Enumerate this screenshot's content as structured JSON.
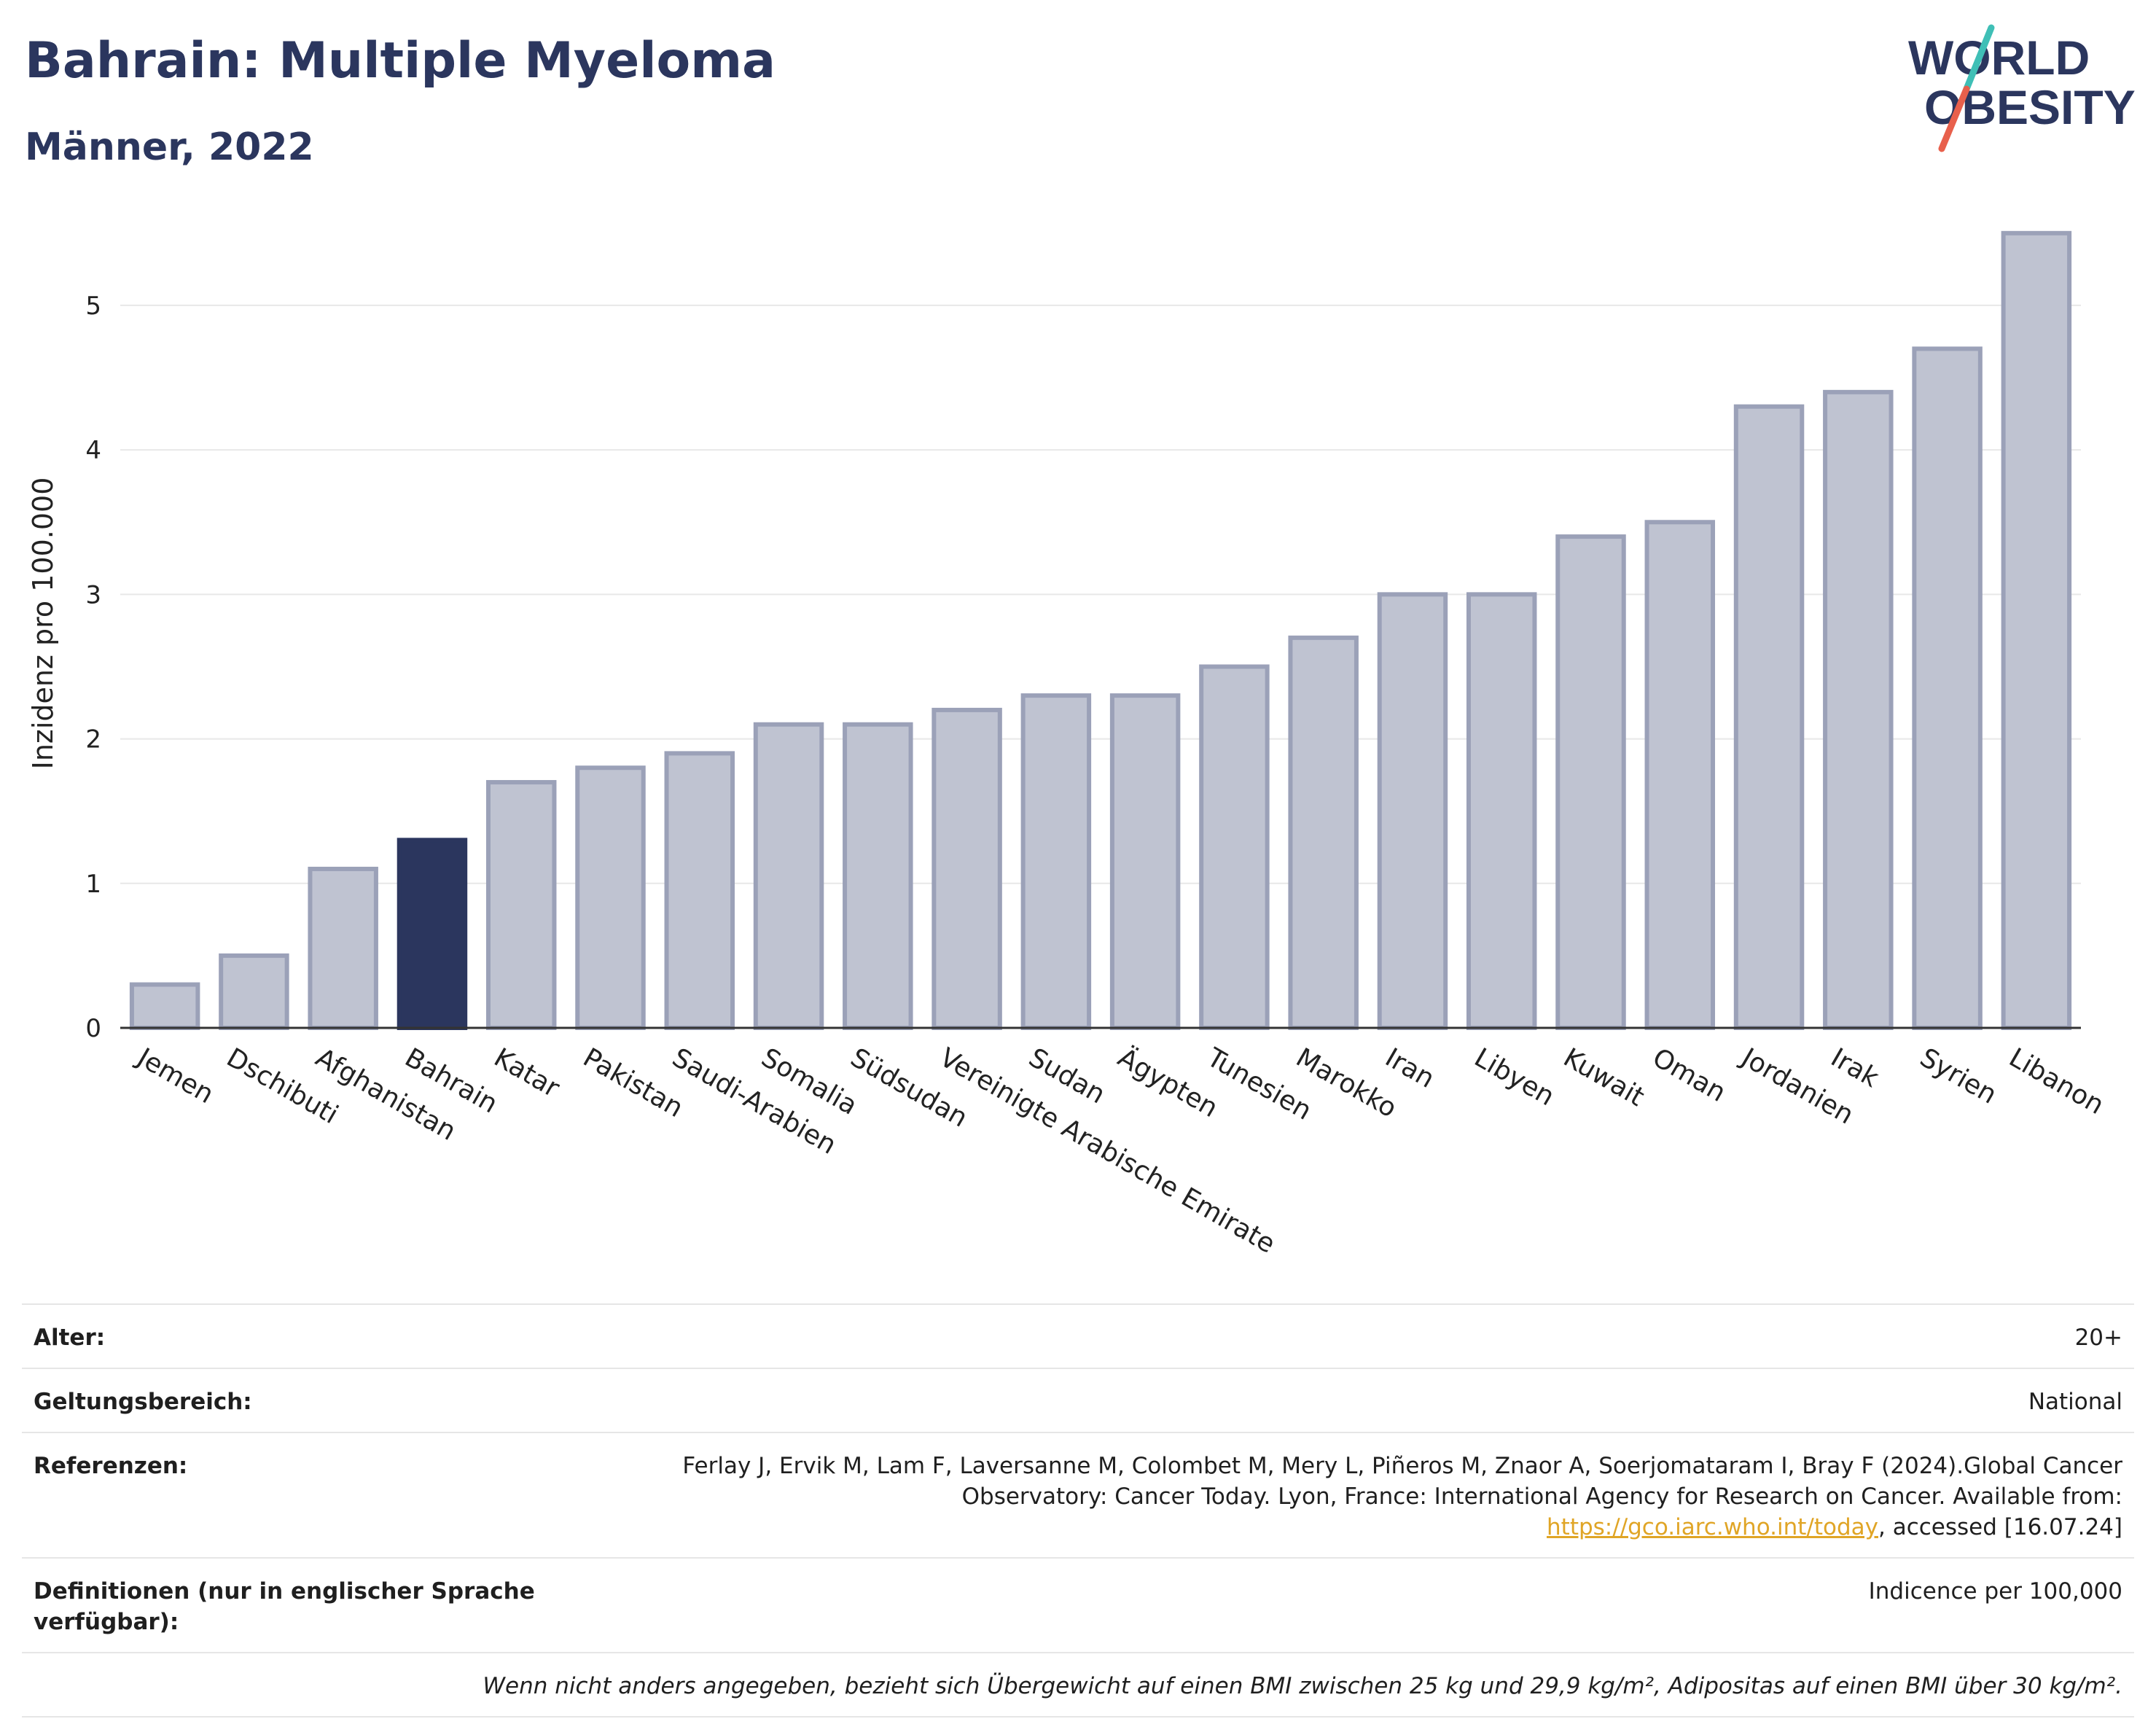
{
  "header": {
    "title": "Bahrain: Multiple Myeloma",
    "subtitle": "Männer, 2022"
  },
  "logo": {
    "line1": "WORLD",
    "line2": "OBESITY",
    "colors": {
      "text": "#2b365e",
      "slash_top": "#3fbfb6",
      "slash_bottom": "#e8604c"
    }
  },
  "chart_data": {
    "type": "bar",
    "categories": [
      "Jemen",
      "Dschibuti",
      "Afghanistan",
      "Bahrain",
      "Katar",
      "Pakistan",
      "Saudi-Arabien",
      "Somalia",
      "Südsudan",
      "Vereinigte Arabische Emirate",
      "Sudan",
      "Ägypten",
      "Tunesien",
      "Marokko",
      "Iran",
      "Libyen",
      "Kuwait",
      "Oman",
      "Jordanien",
      "Irak",
      "Syrien",
      "Libanon"
    ],
    "values": [
      0.3,
      0.5,
      1.1,
      1.3,
      1.7,
      1.8,
      1.9,
      2.1,
      2.1,
      2.2,
      2.3,
      2.3,
      2.5,
      2.7,
      3.0,
      3.0,
      3.4,
      3.5,
      4.3,
      4.4,
      4.7,
      5.5
    ],
    "highlight": "Bahrain",
    "ylabel": "Inzidenz pro 100.000",
    "xlabel": "",
    "ylim": [
      0,
      5.6
    ],
    "yticks": [
      0,
      1,
      2,
      3,
      4,
      5
    ],
    "grid": true,
    "colors": {
      "bar": "#bfc3d1",
      "bar_border": "#9ba1b8",
      "highlight": "#2b365e",
      "grid": "#e8e8e8",
      "axis": "#333333"
    }
  },
  "info": {
    "rows": [
      {
        "label": "Alter:",
        "value": "20+"
      },
      {
        "label": "Geltungsbereich:",
        "value": "National"
      },
      {
        "label": "Referenzen:",
        "value_before": "Ferlay J, Ervik M, Lam F, Laversanne M, Colombet M, Mery L, Piñeros M, Znaor A, Soerjomataram I, Bray F (2024).Global Cancer Observatory: Cancer Today. Lyon, France: International Agency for Research on Cancer. Available from: ",
        "link": "https://gco.iarc.who.int/today",
        "value_after": ", accessed [16.07.24]"
      },
      {
        "label": "Definitionen (nur in englischer Sprache verfügbar):",
        "value": "Indicence per 100,000"
      }
    ],
    "note": "Wenn nicht anders angegeben, bezieht sich Übergewicht auf einen BMI zwischen 25 kg und 29,9 kg/m², Adipositas auf einen BMI über 30 kg/m²."
  }
}
